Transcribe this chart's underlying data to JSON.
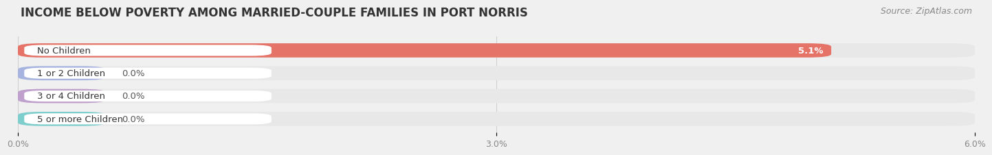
{
  "title": "INCOME BELOW POVERTY AMONG MARRIED-COUPLE FAMILIES IN PORT NORRIS",
  "source": "Source: ZipAtlas.com",
  "categories": [
    "No Children",
    "1 or 2 Children",
    "3 or 4 Children",
    "5 or more Children"
  ],
  "values": [
    5.1,
    0.0,
    0.0,
    0.0
  ],
  "bar_colors": [
    "#e57368",
    "#a8b4e0",
    "#c0a0cc",
    "#7ecece"
  ],
  "xlim": [
    0,
    6.3
  ],
  "data_max": 6.0,
  "xticks": [
    0.0,
    3.0,
    6.0
  ],
  "xtick_labels": [
    "0.0%",
    "3.0%",
    "6.0%"
  ],
  "background_color": "#f0f0f0",
  "bar_background": "#e8e8e8",
  "white_pill_color": "#ffffff",
  "title_fontsize": 12,
  "source_fontsize": 9,
  "label_fontsize": 9.5,
  "value_fontsize": 9.5,
  "bar_height": 0.62,
  "zero_bar_width": 0.55
}
